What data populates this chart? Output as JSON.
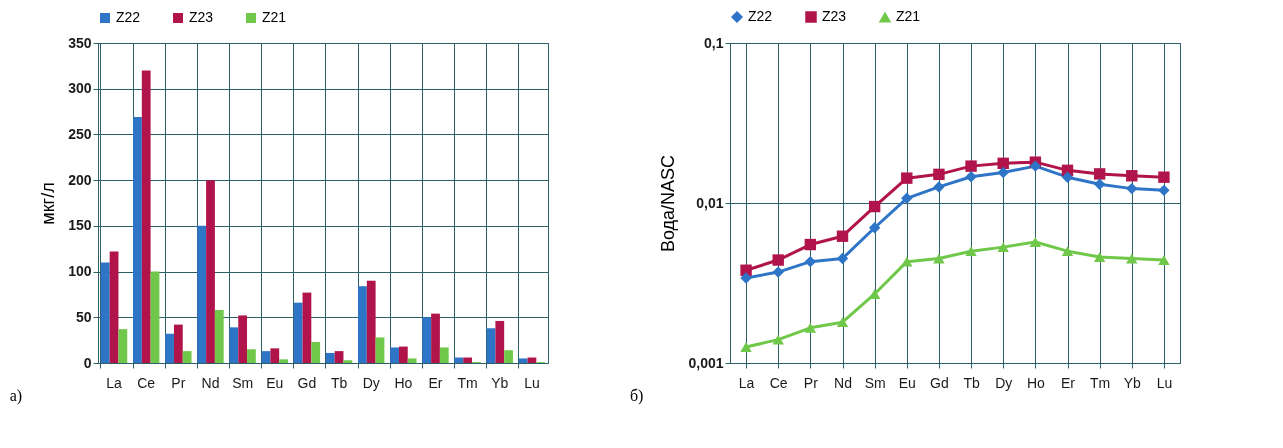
{
  "chart_data": [
    {
      "type": "bar",
      "ylabel": "мкг/л",
      "annotations": [
        "а)"
      ],
      "categories": [
        "La",
        "Ce",
        "Pr",
        "Nd",
        "Sm",
        "Eu",
        "Gd",
        "Tb",
        "Dy",
        "Ho",
        "Er",
        "Tm",
        "Yb",
        "Lu"
      ],
      "series": [
        {
          "name": "Z22",
          "color": "#2e75c8",
          "values": [
            110,
            269,
            32,
            150,
            39,
            13,
            66,
            11,
            84,
            17,
            50,
            6,
            38,
            5
          ]
        },
        {
          "name": "Z23",
          "color": "#b0144a",
          "values": [
            122,
            320,
            42,
            200,
            52,
            16,
            77,
            13,
            90,
            18,
            54,
            6,
            46,
            6
          ]
        },
        {
          "name": "Z21",
          "color": "#70c84a",
          "values": [
            37,
            100,
            13,
            58,
            15,
            4,
            23,
            3,
            28,
            5,
            17,
            1,
            14,
            1
          ]
        }
      ],
      "ylim": [
        0,
        350
      ],
      "yticks": [
        0,
        50,
        100,
        150,
        200,
        250,
        300,
        350
      ],
      "grid": true,
      "legend": "top"
    },
    {
      "type": "line",
      "ylabel": "Вода/NASC",
      "annotations": [
        "б)"
      ],
      "categories": [
        "La",
        "Ce",
        "Pr",
        "Nd",
        "Sm",
        "Eu",
        "Gd",
        "Tb",
        "Dy",
        "Ho",
        "Er",
        "Tm",
        "Yb",
        "Lu"
      ],
      "series": [
        {
          "name": "Z22",
          "color": "#2e75c8",
          "marker": "diamond",
          "values": [
            0.0034,
            0.0037,
            0.0043,
            0.0045,
            0.007,
            0.0107,
            0.0126,
            0.0146,
            0.0155,
            0.017,
            0.0145,
            0.0131,
            0.0123,
            0.012
          ]
        },
        {
          "name": "Z23",
          "color": "#b0144a",
          "marker": "square",
          "values": [
            0.0038,
            0.0044,
            0.0055,
            0.0062,
            0.0095,
            0.0143,
            0.0151,
            0.017,
            0.0177,
            0.018,
            0.016,
            0.0152,
            0.0148,
            0.0145
          ]
        },
        {
          "name": "Z21",
          "color": "#70c84a",
          "marker": "triangle",
          "values": [
            0.00126,
            0.0014,
            0.00166,
            0.0018,
            0.0027,
            0.0043,
            0.0045,
            0.005,
            0.0053,
            0.0057,
            0.005,
            0.0046,
            0.0045,
            0.0044
          ]
        }
      ],
      "log": true,
      "ylim": [
        0.001,
        0.1
      ],
      "yticks": [
        {
          "value": 0.1,
          "label": "0,1"
        },
        {
          "value": 0.01,
          "label": "0,01"
        },
        {
          "value": 0.001,
          "label": "0,001"
        }
      ],
      "grid": true,
      "legend": "top"
    }
  ]
}
